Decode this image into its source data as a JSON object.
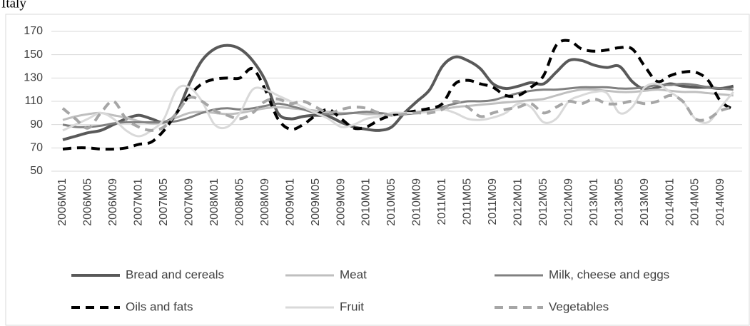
{
  "chart_data": {
    "type": "line",
    "title": "Italy",
    "categories": [
      "2006M01",
      null,
      "2006M05",
      null,
      "2006M09",
      null,
      "2007M01",
      null,
      "2007M05",
      null,
      "2007M09",
      null,
      "2008M01",
      null,
      "2008M05",
      null,
      "2008M09",
      null,
      "2009M01",
      null,
      "2009M05",
      null,
      "2009M09",
      null,
      "2010M01",
      null,
      "2010M05",
      null,
      "2010M09",
      null,
      "2011M01",
      null,
      "2011M05",
      null,
      "2011M09",
      null,
      "2012M01",
      null,
      "2012M05",
      null,
      "2012M09",
      null,
      "2013M01",
      null,
      "2013M05",
      null,
      "2013M09",
      null,
      "2014M01",
      null,
      "2014M05",
      null,
      "2014M09",
      null
    ],
    "ylim": [
      50,
      170
    ],
    "yticks": [
      50,
      70,
      90,
      110,
      130,
      150,
      170
    ],
    "grid": true,
    "legend": "bottom",
    "series": [
      {
        "name": "Bread and cereals",
        "color": "#595959",
        "dash": false,
        "values": [
          77,
          80,
          83,
          85,
          90,
          95,
          98,
          95,
          92,
          100,
          125,
          145,
          155,
          158,
          155,
          145,
          128,
          100,
          95,
          97,
          98,
          97,
          92,
          88,
          86,
          85,
          88,
          100,
          110,
          120,
          140,
          148,
          145,
          138,
          125,
          121,
          123,
          126,
          125,
          135,
          145,
          145,
          141,
          139,
          140,
          127,
          120,
          122,
          125,
          123,
          122,
          122,
          121,
          123
        ]
      },
      {
        "name": "Meat",
        "color": "#bfbfbf",
        "dash": false,
        "values": [
          94,
          97,
          99,
          100,
          98,
          96,
          93,
          91,
          92,
          96,
          100,
          101,
          100,
          99,
          100,
          102,
          104,
          105,
          104,
          103,
          102,
          101,
          100,
          100,
          99,
          99,
          99,
          100,
          101,
          102,
          103,
          105,
          106,
          107,
          108,
          109,
          110,
          111,
          112,
          115,
          118,
          120,
          120,
          119,
          118,
          118,
          119,
          120,
          119,
          118,
          118,
          117,
          116,
          115
        ]
      },
      {
        "name": "Milk, cheese and eggs",
        "color": "#808080",
        "dash": false,
        "values": [
          90,
          88,
          88,
          89,
          91,
          92,
          92,
          92,
          92,
          93,
          96,
          100,
          103,
          104,
          103,
          104,
          106,
          108,
          106,
          103,
          100,
          99,
          99,
          100,
          101,
          100,
          99,
          99,
          100,
          102,
          105,
          108,
          110,
          110,
          111,
          114,
          117,
          119,
          120,
          120,
          121,
          122,
          122,
          122,
          121,
          121,
          122,
          124,
          124,
          125,
          124,
          122,
          121,
          120
        ]
      },
      {
        "name": "Oils and fats",
        "color": "#000000",
        "dash": true,
        "values": [
          69,
          70,
          70,
          69,
          69,
          70,
          73,
          75,
          85,
          100,
          115,
          125,
          129,
          130,
          130,
          138,
          120,
          95,
          86,
          90,
          98,
          103,
          95,
          87,
          88,
          94,
          98,
          100,
          102,
          104,
          108,
          125,
          128,
          125,
          122,
          115,
          115,
          122,
          132,
          158,
          162,
          155,
          153,
          154,
          156,
          155,
          140,
          127,
          132,
          135,
          135,
          128,
          110,
          103
        ]
      },
      {
        "name": "Fruit",
        "color": "#d9d9d9",
        "dash": false,
        "values": [
          85,
          90,
          95,
          100,
          95,
          85,
          80,
          85,
          95,
          120,
          122,
          110,
          90,
          88,
          100,
          120,
          120,
          115,
          110,
          105,
          100,
          95,
          88,
          90,
          95,
          97,
          100,
          100,
          100,
          101,
          103,
          100,
          95,
          94,
          96,
          100,
          108,
          105,
          92,
          95,
          110,
          115,
          118,
          117,
          100,
          105,
          122,
          125,
          118,
          110,
          95,
          92,
          105,
          118
        ]
      },
      {
        "name": "Vegetables",
        "color": "#a6a6a6",
        "dash": true,
        "values": [
          104,
          95,
          87,
          100,
          110,
          95,
          88,
          85,
          88,
          100,
          113,
          110,
          102,
          98,
          95,
          100,
          110,
          112,
          108,
          110,
          105,
          100,
          103,
          105,
          104,
          100,
          98,
          99,
          100,
          100,
          103,
          110,
          105,
          97,
          100,
          103,
          105,
          108,
          100,
          105,
          110,
          108,
          112,
          108,
          108,
          110,
          108,
          110,
          115,
          110,
          95,
          95,
          102,
          105
        ]
      }
    ]
  }
}
